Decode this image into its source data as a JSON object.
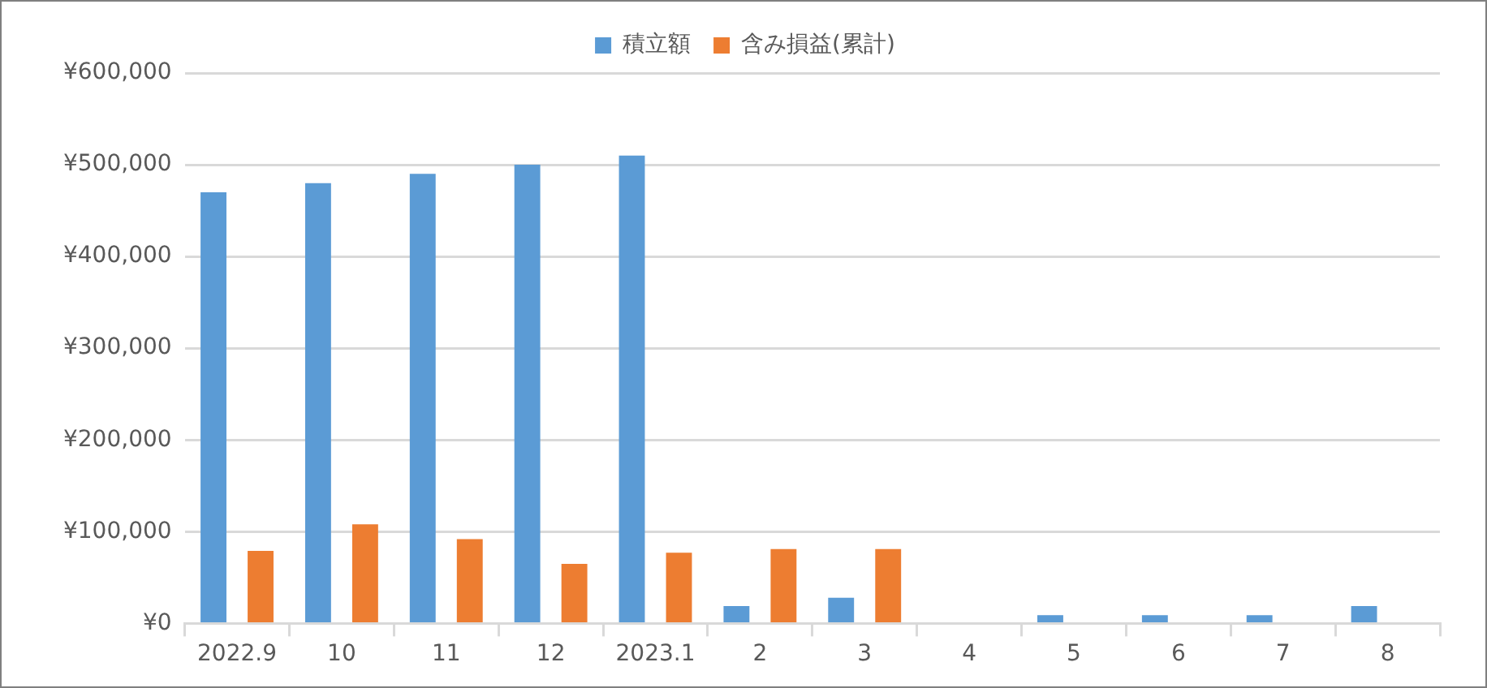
{
  "chart_data": {
    "type": "bar",
    "categories": [
      "2022.9",
      "10",
      "11",
      "12",
      "2023.1",
      "2",
      "3",
      "4",
      "5",
      "6",
      "7",
      "8"
    ],
    "series": [
      {
        "name": "積立額",
        "color": "#5b9bd5",
        "values": [
          470000,
          480000,
          490000,
          500000,
          510000,
          19000,
          28000,
          0,
          9000,
          9000,
          9000,
          19000
        ]
      },
      {
        "name": "含み損益(累計)",
        "color": "#ed7d31",
        "values": [
          79000,
          108000,
          92000,
          65000,
          77000,
          81000,
          81000,
          null,
          null,
          null,
          null,
          null
        ]
      }
    ],
    "ylim": [
      0,
      600000
    ],
    "yticks": [
      {
        "value": 0,
        "label": "¥0"
      },
      {
        "value": 100000,
        "label": "¥100,000"
      },
      {
        "value": 200000,
        "label": "¥200,000"
      },
      {
        "value": 300000,
        "label": "¥300,000"
      },
      {
        "value": 400000,
        "label": "¥400,000"
      },
      {
        "value": 500000,
        "label": "¥500,000"
      },
      {
        "value": 600000,
        "label": "¥600,000"
      }
    ],
    "grid": "y",
    "legend": "top"
  }
}
